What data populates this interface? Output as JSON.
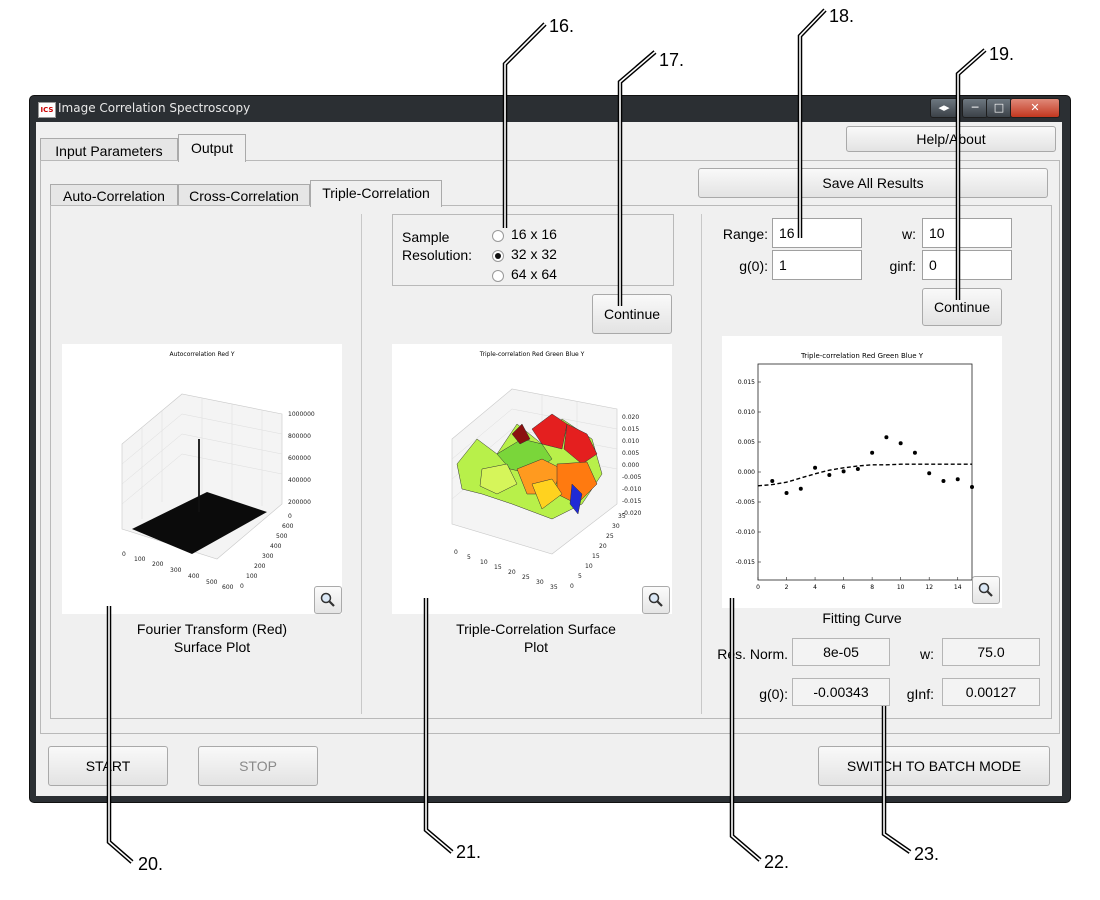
{
  "window": {
    "title": "Image Correlation Spectroscopy",
    "app_icon": "ICS"
  },
  "tabs": [
    {
      "label": "Input Parameters"
    },
    {
      "label": "Output"
    }
  ],
  "subtabs": [
    {
      "label": "Auto-Correlation"
    },
    {
      "label": "Cross-Correlation"
    },
    {
      "label": "Triple-Correlation"
    }
  ],
  "buttons": {
    "help": "Help/About",
    "save_all": "Save All Results",
    "continue_mid": "Continue",
    "continue_right": "Continue",
    "start": "START",
    "stop": "STOP",
    "batch": "SWITCH TO BATCH MODE"
  },
  "sample": {
    "label": "Sample\nResolution:",
    "options": [
      "16 x 16",
      "32 x 32",
      "64 x 64"
    ],
    "selected": 1
  },
  "fit_params": {
    "range_label": "Range:",
    "range_value": "16",
    "w_label": "w:",
    "w_value": "10",
    "g0_label": "g(0):",
    "g0_value": "1",
    "ginf_label": "ginf:",
    "ginf_value": "0"
  },
  "results": {
    "resnorm_label": "Res. Norm.",
    "resnorm_value": "8e-05",
    "w_label": "w:",
    "w_value": "75.0",
    "g0_label": "g(0):",
    "g0_value": "-0.00343",
    "ginf_label": "gInf:",
    "ginf_value": "0.00127"
  },
  "captions": {
    "left": "Fourier Transform (Red)\nSurface Plot",
    "mid": "Triple-Correlation Surface\nPlot",
    "right": "Fitting Curve"
  },
  "plots": {
    "left": {
      "title": "Autocorrelation Red Y",
      "z_ticks": [
        "0",
        "200000",
        "400000",
        "600000",
        "800000",
        "1000000"
      ],
      "x_ticks": [
        "0",
        "100",
        "200",
        "300",
        "400",
        "500",
        "600"
      ],
      "y_ticks": [
        "0",
        "100",
        "200",
        "300",
        "400",
        "500",
        "600"
      ]
    },
    "mid": {
      "title": "Triple-correlation Red Green Blue Y",
      "z_ticks": [
        "0.020",
        "0.015",
        "0.010",
        "0.005",
        "0.000",
        "-0.005",
        "-0.010",
        "-0.015",
        "-0.020"
      ],
      "x_ticks": [
        "0",
        "5",
        "10",
        "15",
        "20",
        "25",
        "30",
        "35"
      ],
      "y_ticks": [
        "0",
        "5",
        "10",
        "15",
        "20",
        "25",
        "30",
        "35"
      ]
    }
  },
  "chart_data": {
    "type": "scatter",
    "title": "Triple-correlation Red Green Blue Y",
    "xlabel": "",
    "ylabel": "",
    "xlim": [
      0,
      15
    ],
    "ylim": [
      -0.018,
      0.018
    ],
    "x_ticks": [
      0,
      2,
      4,
      6,
      8,
      10,
      12,
      14
    ],
    "y_ticks": [
      -0.015,
      -0.01,
      -0.005,
      0.0,
      0.005,
      0.01,
      0.015
    ],
    "y_tick_labels": [
      "-0.015",
      "-0.010",
      "-0.005",
      "0.000",
      "0.005",
      "0.010",
      "0.015"
    ],
    "points": [
      {
        "x": 1,
        "y": -0.0015
      },
      {
        "x": 2,
        "y": -0.0035
      },
      {
        "x": 3,
        "y": -0.0028
      },
      {
        "x": 4,
        "y": 0.0007
      },
      {
        "x": 5,
        "y": -0.0005
      },
      {
        "x": 6,
        "y": 0.0001
      },
      {
        "x": 7,
        "y": 0.0005
      },
      {
        "x": 8,
        "y": 0.0032
      },
      {
        "x": 9,
        "y": 0.0058
      },
      {
        "x": 10,
        "y": 0.0048
      },
      {
        "x": 11,
        "y": 0.0032
      },
      {
        "x": 12,
        "y": -0.0002
      },
      {
        "x": 13,
        "y": -0.0015
      },
      {
        "x": 14,
        "y": -0.0012
      },
      {
        "x": 15,
        "y": -0.0025
      }
    ],
    "fit_line": [
      {
        "x": 0,
        "y": -0.0023
      },
      {
        "x": 1,
        "y": -0.0021
      },
      {
        "x": 2,
        "y": -0.0017
      },
      {
        "x": 3,
        "y": -0.001
      },
      {
        "x": 4,
        "y": -0.0003
      },
      {
        "x": 5,
        "y": 0.0003
      },
      {
        "x": 6,
        "y": 0.0007
      },
      {
        "x": 7,
        "y": 0.001
      },
      {
        "x": 8,
        "y": 0.0012
      },
      {
        "x": 9,
        "y": 0.0012
      },
      {
        "x": 10,
        "y": 0.0013
      },
      {
        "x": 11,
        "y": 0.0013
      },
      {
        "x": 12,
        "y": 0.0013
      },
      {
        "x": 13,
        "y": 0.0013
      },
      {
        "x": 14,
        "y": 0.0013
      },
      {
        "x": 15,
        "y": 0.0013
      }
    ]
  },
  "callouts": [
    "16.",
    "17.",
    "18.",
    "19.",
    "20.",
    "21.",
    "22.",
    "23."
  ]
}
